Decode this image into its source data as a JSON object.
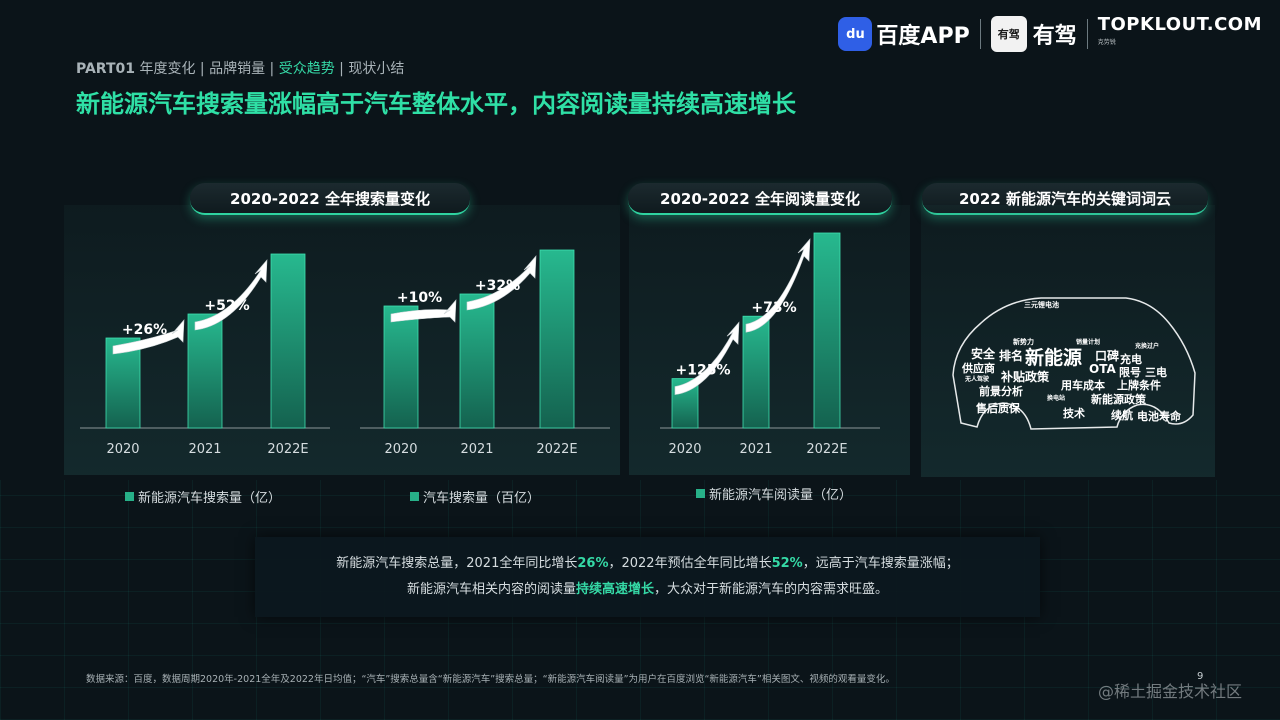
{
  "nav": {
    "part": "PART01",
    "items": [
      "年度变化",
      "品牌销量",
      "受众趋势",
      "现状小结"
    ],
    "active_index": 2,
    "separator": "|"
  },
  "headline": "新能源汽车搜索量涨幅高于汽车整体水平，内容阅读量持续高速增长",
  "logos": {
    "baidu_badge": "du",
    "baidu_text": "百度APP",
    "youjia_badge": "有驾",
    "youjia_text": "有驾",
    "topklout": "TOPKLOUT.COM",
    "topklout_sub": "克劳锐"
  },
  "panels": {
    "search_title": "2020-2022 全年搜索量变化",
    "read_title": "2020-2022 全年阅读量变化",
    "cloud_title": "2022 新能源汽车的关键词词云"
  },
  "chart_data": [
    {
      "type": "bar",
      "categories": [
        "2020",
        "2021",
        "2022E"
      ],
      "values": [
        45,
        57,
        87
      ],
      "series_name": "新能源汽车搜索量（亿）",
      "growth_labels": [
        "+26%",
        "+52%"
      ]
    },
    {
      "type": "bar",
      "categories": [
        "2020",
        "2021",
        "2022E"
      ],
      "values": [
        61,
        67,
        89
      ],
      "series_name": "汽车搜索量（百亿）",
      "growth_labels": [
        "+10%",
        "+32%"
      ]
    },
    {
      "type": "bar",
      "categories": [
        "2020",
        "2021",
        "2022E"
      ],
      "values": [
        19,
        43,
        75
      ],
      "series_name": "新能源汽车阅读量（亿）",
      "growth_labels": [
        "+125%",
        "+73%"
      ]
    }
  ],
  "wordcloud": [
    "三元锂电池",
    "新势力",
    "销量计划",
    "充换过户",
    "安全",
    "排名",
    "新能源",
    "口碑",
    "充电",
    "供应商",
    "OTA",
    "限号",
    "三电",
    "无人驾驶",
    "补贴政策",
    "用车成本",
    "上牌条件",
    "前景分析",
    "换电站",
    "新能源政策",
    "售后质保",
    "技术",
    "续航",
    "电池寿命"
  ],
  "summary": {
    "line1_a": "新能源汽车搜索总量，2021全年同比增长",
    "line1_h1": "26%",
    "line1_b": "，2022年预估全年同比增长",
    "line1_h2": "52%",
    "line1_c": "，远高于汽车搜索量涨幅；",
    "line2_a": "新能源汽车相关内容的阅读量",
    "line2_h": "持续高速增长",
    "line2_b": "，大众对于新能源汽车的内容需求旺盛。"
  },
  "source": "数据来源：百度，数据周期2020年-2021全年及2022年日均值；“汽车”搜索总量含“新能源汽车”搜索总量；“新能源汽车阅读量”为用户在百度浏览“新能源汽车”相关图文、视频的观看量变化。",
  "page_number": "9",
  "watermark": "@稀土掘金技术社区",
  "colors": {
    "accent": "#2fe0a6",
    "bar": "#1f9a7a",
    "background": "#0b1419"
  }
}
